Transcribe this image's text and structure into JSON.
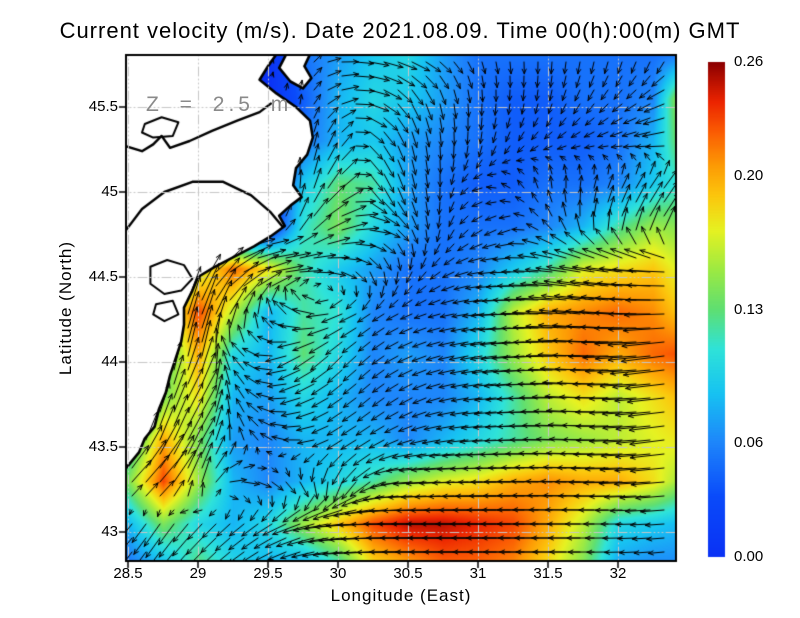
{
  "title": "Current velocity (m/s). Date 2021.08.09. Time 00(h):00(m) GMT",
  "annotation": "Z = 2.5 m",
  "axes": {
    "xlabel": "Longitude (East)",
    "ylabel": "Latitude (North)",
    "x_tick_values": [
      28.5,
      29,
      29.5,
      30,
      30.5,
      31,
      31.5,
      32
    ],
    "x_tick_labels": [
      "28.5",
      "29",
      "29.5",
      "30",
      "30.5",
      "31",
      "31.5",
      "32"
    ],
    "y_tick_values": [
      45.5,
      45,
      44.5,
      44,
      43.5,
      43
    ],
    "y_tick_labels": [
      "45.5",
      "45",
      "44.5",
      "44",
      "43.5",
      "43"
    ]
  },
  "colorbar": {
    "min": 0,
    "max": 0.26,
    "tick_values": [
      0.26,
      0.2,
      0.13,
      0.06,
      0.0
    ],
    "tick_labels": [
      "0.26",
      "0.20",
      "0.13",
      "0.06",
      "0.00"
    ]
  },
  "chart_data": {
    "type": "heatmap",
    "overlay": "quiver",
    "units": "m/s",
    "title": "Current velocity (m/s). Date 2021.08.09. Time 00(h):00(m) GMT",
    "depth_m": 2.5,
    "x_range": [
      28.5,
      32.42
    ],
    "y_range": [
      42.8,
      45.81
    ],
    "value_range": [
      0,
      0.26
    ],
    "grid_lon": [
      28.5,
      28.75,
      29,
      29.25,
      29.5,
      29.75,
      30,
      30.25,
      30.5,
      30.75,
      31,
      31.25,
      31.5,
      31.75,
      32,
      32.25,
      32.5
    ],
    "grid_lat": [
      45.8,
      45.55,
      45.3,
      45.05,
      44.8,
      44.55,
      44.3,
      44.05,
      43.8,
      43.55,
      43.3,
      43.05,
      42.8
    ],
    "magnitude_x100": [
      [
        0,
        0,
        0,
        0,
        0,
        5,
        7,
        9,
        10,
        7,
        5,
        5,
        5,
        5,
        5,
        5,
        6
      ],
      [
        0,
        0,
        0,
        0,
        0,
        4,
        8,
        10,
        9,
        7,
        5,
        4,
        4,
        5,
        5,
        6,
        19
      ],
      [
        0,
        0,
        0,
        0,
        0,
        5,
        8,
        9,
        7,
        6,
        5,
        4,
        4,
        4,
        5,
        8,
        16
      ],
      [
        0,
        0,
        0,
        0,
        0,
        9,
        13,
        12,
        7,
        5,
        4,
        4,
        5,
        5,
        6,
        9,
        12
      ],
      [
        0,
        0,
        0,
        0,
        0,
        11,
        14,
        10,
        7,
        5,
        5,
        5,
        6,
        8,
        12,
        15,
        14
      ],
      [
        0,
        0,
        16,
        22,
        18,
        12,
        9,
        7,
        5,
        5,
        6,
        9,
        12,
        17,
        18,
        19,
        16
      ],
      [
        0,
        14,
        23,
        16,
        8,
        12,
        11,
        6,
        5,
        5,
        8,
        16,
        20,
        21,
        22,
        21,
        18
      ],
      [
        0,
        12,
        20,
        10,
        8,
        13,
        10,
        6,
        7,
        6,
        10,
        15,
        19,
        22,
        20,
        22,
        23
      ],
      [
        0,
        14,
        18,
        8,
        7,
        10,
        8,
        6,
        6,
        6,
        8,
        12,
        16,
        18,
        16,
        18,
        20
      ],
      [
        10,
        20,
        14,
        7,
        6,
        8,
        8,
        8,
        6,
        8,
        10,
        12,
        14,
        15,
        16,
        17,
        18
      ],
      [
        14,
        23,
        15,
        8,
        6,
        8,
        10,
        12,
        15,
        17,
        18,
        20,
        21,
        20,
        20,
        18,
        14
      ],
      [
        8,
        14,
        10,
        8,
        10,
        15,
        19,
        23,
        25,
        25,
        24,
        23,
        20,
        16,
        10,
        9,
        8
      ],
      [
        5,
        8,
        13,
        10,
        8,
        7,
        11,
        18,
        20,
        22,
        22,
        21,
        18,
        14,
        7,
        6,
        6
      ]
    ],
    "direction_deg": [
      [
        0,
        0,
        0,
        0,
        0,
        70,
        0,
        350,
        340,
        320,
        290,
        275,
        268,
        262,
        256,
        250,
        245
      ],
      [
        0,
        0,
        0,
        0,
        0,
        80,
        20,
        340,
        300,
        282,
        270,
        264,
        258,
        240,
        225,
        210,
        200
      ],
      [
        0,
        0,
        0,
        0,
        0,
        88,
        60,
        310,
        285,
        272,
        262,
        240,
        215,
        202,
        195,
        190,
        186
      ],
      [
        0,
        0,
        0,
        0,
        0,
        90,
        50,
        300,
        285,
        268,
        200,
        140,
        95,
        80,
        65,
        55,
        50
      ],
      [
        0,
        0,
        0,
        0,
        0,
        60,
        20,
        350,
        300,
        255,
        215,
        200,
        130,
        90,
        70,
        60,
        55
      ],
      [
        0,
        0,
        55,
        30,
        10,
        0,
        345,
        295,
        250,
        215,
        192,
        182,
        175,
        170,
        172,
        176,
        180
      ],
      [
        0,
        80,
        70,
        55,
        95,
        150,
        200,
        215,
        205,
        195,
        188,
        182,
        178,
        174,
        176,
        180,
        184
      ],
      [
        0,
        85,
        75,
        120,
        170,
        210,
        225,
        220,
        205,
        195,
        190,
        186,
        182,
        178,
        182,
        186,
        190
      ],
      [
        0,
        75,
        60,
        110,
        160,
        200,
        215,
        220,
        210,
        196,
        188,
        184,
        180,
        177,
        181,
        185,
        189
      ],
      [
        70,
        68,
        58,
        100,
        145,
        180,
        210,
        212,
        200,
        190,
        186,
        182,
        179,
        178,
        182,
        186,
        190
      ],
      [
        48,
        50,
        75,
        0,
        330,
        300,
        255,
        215,
        185,
        183,
        181,
        180,
        179,
        179,
        181,
        184,
        187
      ],
      [
        230,
        235,
        228,
        222,
        215,
        200,
        188,
        182,
        180,
        180,
        180,
        180,
        180,
        180,
        180,
        183,
        186
      ],
      [
        235,
        232,
        226,
        218,
        206,
        194,
        186,
        182,
        180,
        180,
        180,
        180,
        180,
        180,
        182,
        185,
        188
      ]
    ],
    "colormap_stops": [
      [
        0.0,
        "#0b32f5"
      ],
      [
        0.12,
        "#0a4bfa"
      ],
      [
        0.23,
        "#1e86fb"
      ],
      [
        0.33,
        "#17c3f2"
      ],
      [
        0.42,
        "#2fe3d9"
      ],
      [
        0.5,
        "#5fdf72"
      ],
      [
        0.58,
        "#9dea43"
      ],
      [
        0.66,
        "#e6f222"
      ],
      [
        0.73,
        "#fcc70d"
      ],
      [
        0.79,
        "#fd9c05"
      ],
      [
        0.86,
        "#fb5c03"
      ],
      [
        0.92,
        "#ec2501"
      ],
      [
        1.0,
        "#8c0000"
      ]
    ],
    "land": {
      "coast": [
        [
          29.56,
          45.81
        ],
        [
          29.5,
          45.74
        ],
        [
          29.44,
          45.66
        ],
        [
          29.56,
          45.58
        ],
        [
          29.7,
          45.5
        ],
        [
          29.8,
          45.42
        ],
        [
          29.82,
          45.32
        ],
        [
          29.78,
          45.22
        ],
        [
          29.7,
          45.14
        ],
        [
          29.68,
          45.04
        ],
        [
          29.74,
          44.97
        ],
        [
          29.66,
          44.92
        ],
        [
          29.58,
          44.86
        ],
        [
          29.62,
          44.8
        ],
        [
          29.52,
          44.74
        ],
        [
          29.4,
          44.68
        ],
        [
          29.26,
          44.62
        ],
        [
          29.12,
          44.56
        ],
        [
          29.0,
          44.5
        ],
        [
          28.96,
          44.42
        ],
        [
          28.9,
          44.32
        ],
        [
          28.9,
          44.22
        ],
        [
          28.88,
          44.12
        ],
        [
          28.84,
          44.02
        ],
        [
          28.8,
          43.92
        ],
        [
          28.77,
          43.82
        ],
        [
          28.72,
          43.72
        ],
        [
          28.69,
          43.62
        ],
        [
          28.62,
          43.55
        ],
        [
          28.58,
          43.47
        ],
        [
          28.52,
          43.41
        ],
        [
          28.48,
          43.37
        ]
      ],
      "island": [
        [
          29.63,
          45.81
        ],
        [
          29.58,
          45.73
        ],
        [
          29.66,
          45.65
        ],
        [
          29.75,
          45.61
        ],
        [
          29.81,
          45.67
        ],
        [
          29.76,
          45.74
        ],
        [
          29.8,
          45.81
        ]
      ],
      "river": [
        [
          28.48,
          45.27
        ],
        [
          28.6,
          45.24
        ],
        [
          28.68,
          45.28
        ],
        [
          28.74,
          45.33
        ],
        [
          28.8,
          45.26
        ],
        [
          28.94,
          45.3
        ],
        [
          29.1,
          45.36
        ],
        [
          29.28,
          45.42
        ],
        [
          29.44,
          45.47
        ],
        [
          29.52,
          45.52
        ]
      ],
      "branch": [
        [
          28.49,
          44.78
        ],
        [
          28.6,
          44.9
        ],
        [
          28.76,
          45.0
        ],
        [
          28.96,
          45.06
        ],
        [
          29.18,
          45.06
        ],
        [
          29.38,
          44.98
        ],
        [
          29.52,
          44.88
        ],
        [
          29.6,
          44.8
        ]
      ],
      "lakes": [
        [
          [
            28.66,
            44.56
          ],
          [
            28.78,
            44.6
          ],
          [
            28.9,
            44.57
          ],
          [
            28.96,
            44.49
          ],
          [
            28.88,
            44.42
          ],
          [
            28.76,
            44.4
          ],
          [
            28.66,
            44.46
          ]
        ],
        [
          [
            28.7,
            44.34
          ],
          [
            28.82,
            44.36
          ],
          [
            28.86,
            44.28
          ],
          [
            28.76,
            44.24
          ],
          [
            28.68,
            44.28
          ]
        ],
        [
          [
            28.62,
            45.4
          ],
          [
            28.74,
            45.44
          ],
          [
            28.86,
            45.41
          ],
          [
            28.82,
            45.33
          ],
          [
            28.68,
            45.32
          ],
          [
            28.6,
            45.35
          ]
        ]
      ]
    }
  }
}
